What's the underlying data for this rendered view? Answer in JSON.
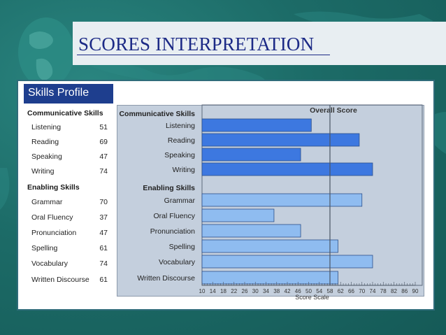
{
  "slide_title": "SCORES  INTERPRETATION",
  "panel_title": "Skills Profile",
  "groups": [
    {
      "heading": "Communicative Skills",
      "items": [
        {
          "label": "Listening",
          "score": 51
        },
        {
          "label": "Reading",
          "score": 69
        },
        {
          "label": "Speaking",
          "score": 47
        },
        {
          "label": "Writing",
          "score": 74
        }
      ]
    },
    {
      "heading": "Enabling Skills",
      "items": [
        {
          "label": "Grammar",
          "score": 70
        },
        {
          "label": "Oral Fluency",
          "score": 37
        },
        {
          "label": "Pronunciation",
          "score": 47
        },
        {
          "label": "Spelling",
          "score": 61
        },
        {
          "label": "Vocabulary",
          "score": 74
        },
        {
          "label": "Written Discourse",
          "score": 61
        }
      ]
    }
  ],
  "colors": {
    "communicative_bar": "#3d78e0",
    "enabling_bar": "#8fbcf0",
    "bar_stroke": "#2c4f8a"
  },
  "chart_data": {
    "type": "bar",
    "orientation": "horizontal",
    "overall_label": "Overall Score",
    "overall_value": 58,
    "xlabel": "Score Scale",
    "xlim": [
      10,
      90
    ],
    "ticks": [
      10,
      14,
      18,
      22,
      26,
      30,
      34,
      38,
      42,
      46,
      50,
      54,
      58,
      62,
      66,
      70,
      74,
      78,
      82,
      86,
      90
    ],
    "section_headings": [
      "Communicative Skills",
      "Enabling Skills"
    ],
    "categories": [
      "Listening",
      "Reading",
      "Speaking",
      "Writing",
      "Grammar",
      "Oral Fluency",
      "Pronunciation",
      "Spelling",
      "Vocabulary",
      "Written Discourse"
    ],
    "values": [
      51,
      69,
      47,
      74,
      70,
      37,
      47,
      61,
      74,
      61
    ],
    "groups": [
      "Communicative Skills",
      "Communicative Skills",
      "Communicative Skills",
      "Communicative Skills",
      "Enabling Skills",
      "Enabling Skills",
      "Enabling Skills",
      "Enabling Skills",
      "Enabling Skills",
      "Enabling Skills"
    ]
  }
}
